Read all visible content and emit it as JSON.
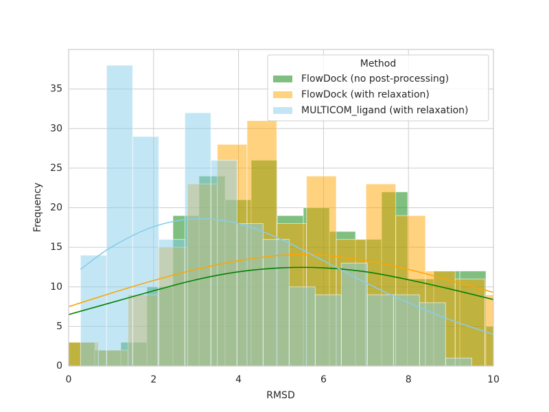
{
  "chart_data": {
    "type": "histogram",
    "xlabel": "RMSD",
    "ylabel": "Frequency",
    "xlim": [
      0,
      10
    ],
    "ylim": [
      0,
      40
    ],
    "xticks": [
      0,
      2,
      4,
      6,
      8,
      10
    ],
    "yticks": [
      0,
      5,
      10,
      15,
      20,
      25,
      30,
      35
    ],
    "grid": true,
    "legend_title": "Method",
    "legend_position": "upper right",
    "series": [
      {
        "name": "FlowDock (no post-processing)",
        "color": "#008000",
        "bins": [
          0,
          0.614,
          1.228,
          1.842,
          2.456,
          3.07,
          3.684,
          4.298,
          4.912,
          5.526,
          6.14,
          6.754,
          7.368,
          7.982,
          8.596,
          9.21,
          9.824,
          10.438
        ],
        "values": [
          3,
          2,
          3,
          10,
          19,
          24,
          21,
          26,
          19,
          20,
          17,
          16,
          22,
          11,
          12,
          12,
          5
        ],
        "kde_x": [
          0,
          1,
          2,
          3,
          4,
          5,
          6,
          7,
          8,
          9,
          10
        ],
        "kde_y": [
          6.5,
          8.0,
          9.5,
          10.9,
          11.9,
          12.4,
          12.4,
          11.9,
          10.9,
          9.7,
          8.4
        ]
      },
      {
        "name": "FlowDock (with relaxation)",
        "color": "#ffa500",
        "bins": [
          0,
          0.7,
          1.4,
          2.1,
          2.8,
          3.5,
          4.2,
          4.9,
          5.6,
          6.3,
          7.0,
          7.7,
          8.4,
          9.1,
          9.8,
          10.5
        ],
        "values": [
          3,
          2,
          9,
          15,
          23,
          28,
          31,
          18,
          24,
          16,
          23,
          19,
          12,
          11,
          9
        ],
        "kde_x": [
          0,
          1,
          2,
          3,
          4,
          5,
          6,
          7,
          8,
          9,
          10
        ],
        "kde_y": [
          7.5,
          9.2,
          10.8,
          12.2,
          13.3,
          14.0,
          14.0,
          13.3,
          12.2,
          10.8,
          9.3
        ]
      },
      {
        "name": "MULTICOM_ligand (with relaxation)",
        "color": "#87ceeb",
        "bins": [
          0.28,
          0.894,
          1.508,
          2.122,
          2.736,
          3.35,
          3.964,
          4.578,
          5.192,
          5.806,
          6.42,
          7.034,
          7.648,
          8.262,
          8.876,
          9.49
        ],
        "values": [
          14,
          38,
          29,
          16,
          32,
          26,
          18,
          16,
          10,
          9,
          13,
          9,
          9,
          8,
          1
        ],
        "kde_x": [
          0.28,
          1,
          2,
          3,
          4,
          5,
          6,
          7,
          8,
          9,
          10
        ],
        "kde_y": [
          12.2,
          15.0,
          17.6,
          18.6,
          18.0,
          16.0,
          13.3,
          10.5,
          8.0,
          5.8,
          4.0
        ]
      }
    ]
  }
}
